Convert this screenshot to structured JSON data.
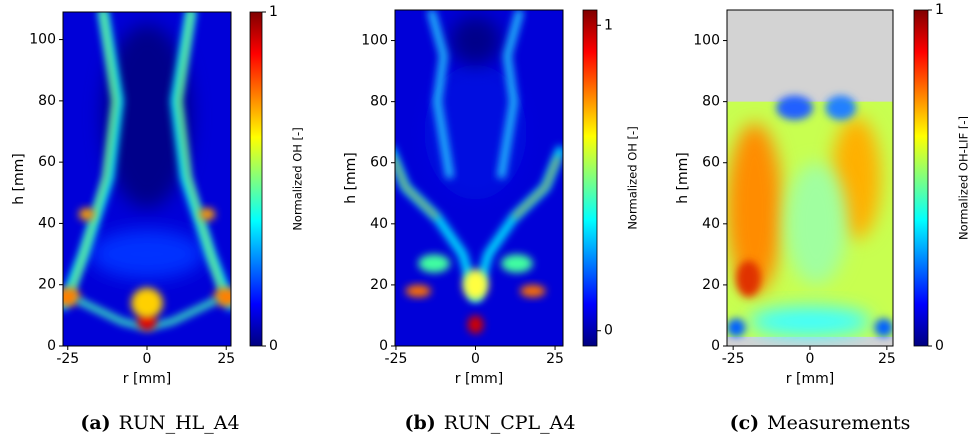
{
  "chart_data": [
    {
      "type": "heatmap",
      "xlabel": "r [mm]",
      "ylabel": "h [mm]",
      "xlim": [
        -26.5,
        26.5
      ],
      "ylim": [
        0,
        109
      ],
      "xticks": [
        -25,
        0,
        25
      ],
      "yticks": [
        0,
        20,
        40,
        60,
        80,
        100
      ],
      "colorbar": {
        "label": "Normalized OH [-]",
        "lim": [
          0,
          1
        ],
        "ticks": [
          0,
          1
        ]
      },
      "caption": {
        "label": "(a)",
        "text": "RUN_HL_A4"
      }
    },
    {
      "type": "heatmap",
      "xlabel": "r [mm]",
      "ylabel": "h [mm]",
      "xlim": [
        -25.3,
        27.5
      ],
      "ylim": [
        0,
        110
      ],
      "xticks": [
        -25,
        0,
        25
      ],
      "yticks": [
        0,
        20,
        40,
        60,
        80,
        100
      ],
      "colorbar": {
        "label": "Normalized OH [-]",
        "lim": [
          -0.05,
          1.05
        ],
        "ticks": [
          0,
          1
        ]
      },
      "caption": {
        "label": "(b)",
        "text": "RUN_CPL_A4"
      }
    },
    {
      "type": "heatmap",
      "xlabel": "r [mm]",
      "ylabel": "h [mm]",
      "xlim": [
        -27,
        27
      ],
      "ylim": [
        0,
        110
      ],
      "xticks": [
        -25,
        0,
        25
      ],
      "yticks": [
        0,
        20,
        40,
        60,
        80,
        100
      ],
      "colorbar": {
        "label": "Normalized OH-LIF [-]",
        "lim": [
          0,
          1
        ],
        "ticks": [
          0,
          1
        ]
      },
      "caption": {
        "label": "(c)",
        "text": "Measurements"
      }
    }
  ]
}
